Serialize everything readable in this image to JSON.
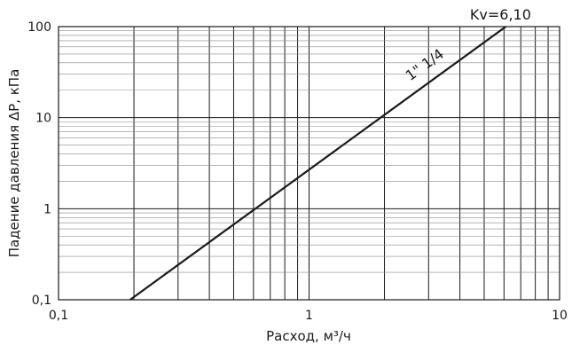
{
  "chart_data": {
    "type": "line",
    "xscale": "log",
    "yscale": "log",
    "xlim": [
      0.1,
      10
    ],
    "ylim": [
      0.1,
      100
    ],
    "x_ticks": [
      0.1,
      1,
      10
    ],
    "x_tick_labels": [
      "0,1",
      "1",
      "10"
    ],
    "y_ticks": [
      0.1,
      1,
      10,
      100
    ],
    "y_tick_labels": [
      "0,1",
      "1",
      "10",
      "100"
    ],
    "xlabel": "Расход, м³/ч",
    "ylabel": "Падение давления ΔP, кПа",
    "grid": true,
    "series": [
      {
        "name": "1\" 1/4",
        "kv": "Kv=6,10",
        "x": [
          0.193,
          6.1
        ],
        "y": [
          0.1,
          100
        ]
      }
    ]
  }
}
